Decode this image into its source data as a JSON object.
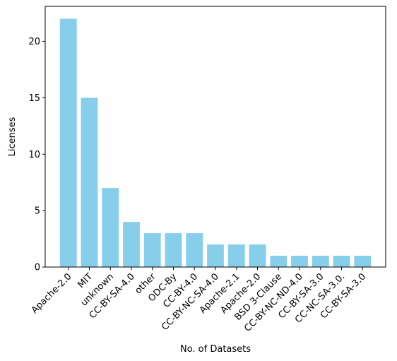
{
  "chart_data": {
    "type": "bar",
    "categories": [
      "Apache-2.0",
      "MIT",
      "unknown",
      "CC-BY-SA-4.0",
      "other",
      "ODC-By",
      "CC-BY-4.0",
      "CC-BY-NC-SA-4.0",
      "Apache-2.1",
      "Apache-2.0",
      "BSD 3-Clause",
      "CC-BY-NC-ND-4.0",
      "CC-BY-SA-3.0",
      "CC-NC-SA-3.0.",
      "CC-BY-SA-3.0"
    ],
    "values": [
      22,
      15,
      7,
      4,
      3,
      3,
      3,
      2,
      2,
      2,
      1,
      1,
      1,
      1,
      1
    ],
    "xlabel": "No. of Datasets",
    "ylabel": "Licenses",
    "ylim": [
      0,
      23.1
    ],
    "yticks": [
      0,
      5,
      10,
      15,
      20
    ],
    "bar_color": "#87CEEB",
    "grid": false,
    "legend": "none"
  }
}
